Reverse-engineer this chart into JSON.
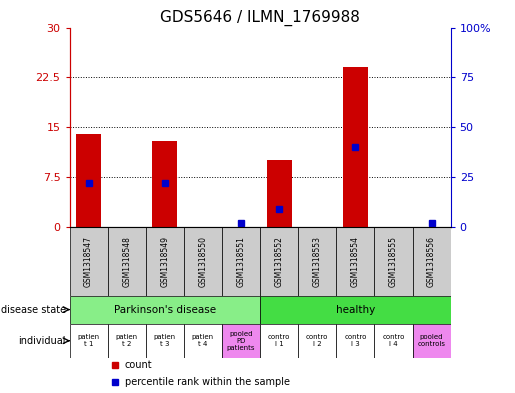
{
  "title": "GDS5646 / ILMN_1769988",
  "samples": [
    "GSM1318547",
    "GSM1318548",
    "GSM1318549",
    "GSM1318550",
    "GSM1318551",
    "GSM1318552",
    "GSM1318553",
    "GSM1318554",
    "GSM1318555",
    "GSM1318556"
  ],
  "count_values": [
    14.0,
    0,
    13.0,
    0,
    0,
    10.0,
    0,
    24.0,
    0,
    0
  ],
  "percentile_values": [
    22,
    0,
    22,
    0,
    2,
    9,
    0,
    40,
    0,
    2
  ],
  "left_ylim": [
    0,
    30
  ],
  "right_ylim": [
    0,
    100
  ],
  "left_yticks": [
    0,
    7.5,
    15,
    22.5,
    30
  ],
  "right_yticks": [
    0,
    25,
    50,
    75,
    100
  ],
  "right_yticklabels": [
    "0",
    "25",
    "50",
    "75",
    "100%"
  ],
  "bar_color": "#cc0000",
  "percentile_color": "#0000cc",
  "grid_color": "#000000",
  "disease_state_labels": [
    "Parkinson's disease",
    "healthy"
  ],
  "disease_color_parkinsons": "#88ee88",
  "disease_color_healthy": "#44dd44",
  "individual_labels": [
    "patien\nt 1",
    "patien\nt 2",
    "patien\nt 3",
    "patien\nt 4",
    "pooled\nPD\npatients",
    "contro\nl 1",
    "contro\nl 2",
    "contro\nl 3",
    "contro\nl 4",
    "pooled\ncontrols"
  ],
  "individual_colors": [
    "#ffffff",
    "#ffffff",
    "#ffffff",
    "#ffffff",
    "#ee88ee",
    "#ffffff",
    "#ffffff",
    "#ffffff",
    "#ffffff",
    "#ee88ee"
  ],
  "sample_box_color": "#cccccc",
  "legend_count_color": "#cc0000",
  "legend_percentile_color": "#0000cc",
  "title_fontsize": 11,
  "tick_fontsize": 8
}
